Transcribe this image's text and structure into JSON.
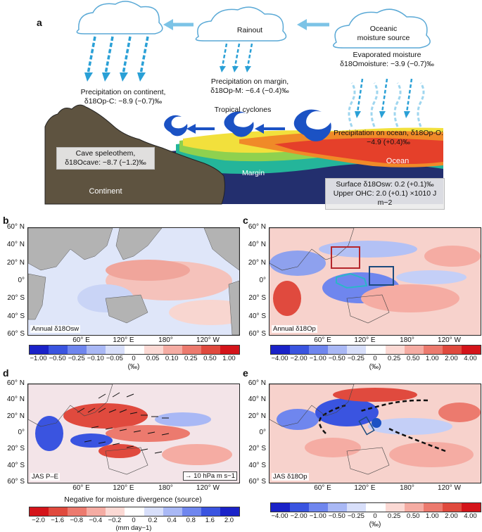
{
  "panels": {
    "a": "a",
    "b": "b",
    "c": "c",
    "d": "d",
    "e": "e"
  },
  "schematic": {
    "rainout": "Rainout",
    "oceanic_source_l1": "Oceanic",
    "oceanic_source_l2": "moisture source",
    "evap_l1": "Evaporated moisture",
    "evap_l2": "δ18Omoisture: −3.9 (−0.7)‰",
    "p_margin_l1": "Precipitation on margin,",
    "p_margin_l2": "δ18Op-M: −6.4 (−0.4)‰",
    "p_continent_l1": "Precipitation on continent,",
    "p_continent_l2": "δ18Op-C: −8.9 (−0.7)‰",
    "tropical_cyclones": "Tropical cyclones",
    "p_ocean": "Precipitation on ocean, δ18Op-O: −4.9 (+0.4)‰",
    "cave_l1": "Cave speleothem,",
    "cave_l2": "δ18Ocave: −8.7 (−1.2)‰",
    "continent": "Continent",
    "margin": "Margin",
    "ocean": "Ocean",
    "surface_sw": "Surface δ18Osw: 0.2 (+0.1)‰",
    "upper_ohc": "Upper OHC: 2.0 (+0.1) ×1010 J m−2"
  },
  "lat_labels": [
    "60° N",
    "40° N",
    "20° N",
    "0°",
    "20° S",
    "40° S",
    "60° S"
  ],
  "lon_labels": [
    "60° E",
    "120° E",
    "180°",
    "120° W"
  ],
  "map_b": {
    "label": "Annual δ18Osw"
  },
  "map_c": {
    "label": "Annual δ18Op"
  },
  "map_d": {
    "label": "JAS P–E",
    "legend": "10 hPa m s−1"
  },
  "map_e": {
    "label": "JAS δ18Op"
  },
  "colorbar_b": {
    "ticks": [
      "−1.00",
      "−0.50",
      "−0.25",
      "−0.10",
      "−0.05",
      "0",
      "0.05",
      "0.10",
      "0.25",
      "0.50",
      "1.00"
    ],
    "unit": "(‰)"
  },
  "colorbar_c": {
    "ticks": [
      "−4.00",
      "−2.00",
      "−1.00",
      "−0.50",
      "−0.25",
      "0",
      "0.25",
      "0.50",
      "1.00",
      "2.00",
      "4.00"
    ],
    "unit": "(‰)"
  },
  "colorbar_d": {
    "ticks": [
      "−2.0",
      "−1.6",
      "−0.8",
      "−0.4",
      "−0.2",
      "0",
      "0.2",
      "0.4",
      "0.8",
      "1.6",
      "2.0"
    ],
    "unit": "(mm day−1)",
    "caption": "Negative for moisture divergence (source)"
  },
  "colorbar_e": {
    "ticks": [
      "−4.00",
      "−2.00",
      "−1.00",
      "−0.50",
      "−0.25",
      "0",
      "0.25",
      "0.50",
      "1.00",
      "2.00",
      "4.00"
    ],
    "unit": "(‰)"
  },
  "colors": {
    "blue_scale": [
      "#1a22c8",
      "#3a54e0",
      "#6f86ee",
      "#a9b8f5",
      "#d8dffa",
      "#ffffff",
      "#fbd9d4",
      "#f5aca3",
      "#ec7a6e",
      "#e04a3e",
      "#d4141a"
    ],
    "red_first_scale": [
      "#d4141a",
      "#e04a3e",
      "#ec7a6e",
      "#f5aca3",
      "#fbd9d4",
      "#ffffff",
      "#d8dffa",
      "#a9b8f5",
      "#6f86ee",
      "#3a54e0",
      "#1a22c8"
    ],
    "land": "#b3b3b3",
    "continent_brown": "#5e5340",
    "ocean_deep": "#232f6e",
    "arrow_blue": "#1b52c4",
    "rain_blue": "#2aa0d6"
  }
}
